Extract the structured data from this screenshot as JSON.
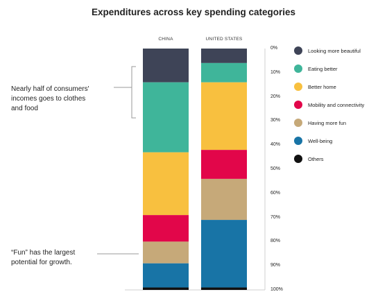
{
  "chart_data": {
    "type": "bar",
    "stacked": true,
    "orientation": "vertical",
    "title": "Expenditures across key spending categories",
    "categories": [
      "CHINA",
      "UNITED STATES"
    ],
    "series": [
      {
        "name": "Looking more beautiful",
        "color": "#3e4457",
        "values": [
          14,
          6
        ]
      },
      {
        "name": "Eating better",
        "color": "#3fb59a",
        "values": [
          29,
          8
        ]
      },
      {
        "name": "Better home",
        "color": "#f8c03f",
        "values": [
          26,
          28
        ]
      },
      {
        "name": "Mobility and connectivity",
        "color": "#e2064a",
        "values": [
          11,
          12
        ]
      },
      {
        "name": "Having more fun",
        "color": "#c6a979",
        "values": [
          9,
          17
        ]
      },
      {
        "name": "Well-being",
        "color": "#1874a6",
        "values": [
          10,
          28
        ]
      },
      {
        "name": "Others",
        "color": "#111111",
        "values": [
          1,
          1
        ]
      }
    ],
    "y_ticks": [
      "0%",
      "10%",
      "20%",
      "30%",
      "40%",
      "50%",
      "60%",
      "70%",
      "80%",
      "90%",
      "100%"
    ],
    "ylim": [
      0,
      100
    ],
    "y_axis_inverted": true,
    "legend_position": "right"
  },
  "annotations": {
    "food_lines": [
      "Nearly half of consumers'",
      "incomes goes to clothes",
      "and food"
    ],
    "fun_lines": [
      "“Fun” has the largest",
      "potential for growth."
    ]
  }
}
